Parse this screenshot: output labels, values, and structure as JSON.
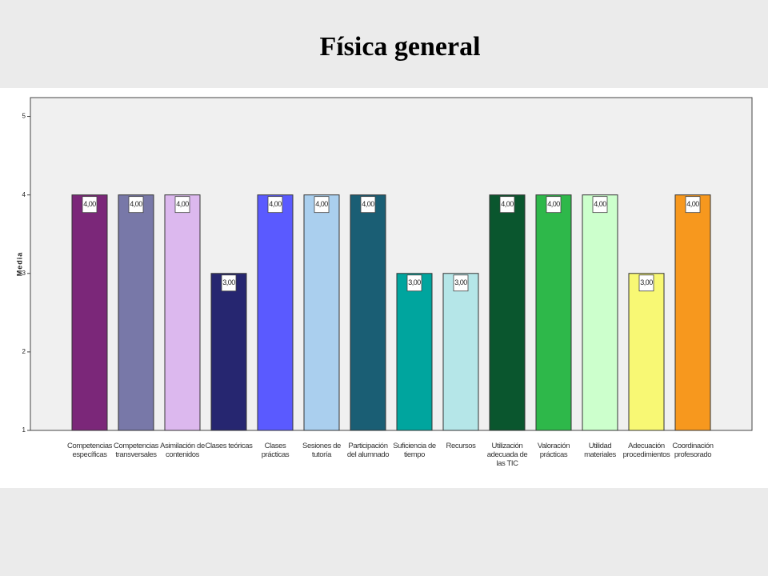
{
  "chart_data": {
    "type": "bar",
    "title": "Física general",
    "y_label": "Media",
    "categories": [
      "Competencias específicas",
      "Competencias transversales",
      "Asimilación de contenidos",
      "Clases teóricas",
      "Clases prácticas",
      "Sesiones de tutoría",
      "Participación del alumnado",
      "Suficiencia de tiempo",
      "Recursos",
      "Utilización adecuada de las TIC",
      "Valoración prácticas",
      "Utilidad materiales",
      "Adecuación procedimientos",
      "Coordinación profesorado"
    ],
    "values": [
      4,
      4,
      4,
      3,
      4,
      4,
      4,
      3,
      3,
      4,
      4,
      4,
      3,
      4
    ],
    "value_labels": [
      "4,00",
      "4,00",
      "4,00",
      "3,00",
      "4,00",
      "4,00",
      "4,00",
      "3,00",
      "3,00",
      "4,00",
      "4,00",
      "4,00",
      "3,00",
      "4,00"
    ],
    "colors": [
      "#7b2779",
      "#7878a8",
      "#dcb8ee",
      "#262670",
      "#5a5aff",
      "#aacfee",
      "#1a5e74",
      "#00a59e",
      "#b5e6e8",
      "#0a562e",
      "#2eb84a",
      "#ccffcc",
      "#f8f874",
      "#f7981e"
    ],
    "ylim": [
      1,
      5.24
    ],
    "yticks": [
      1,
      2,
      3,
      4,
      5
    ]
  }
}
